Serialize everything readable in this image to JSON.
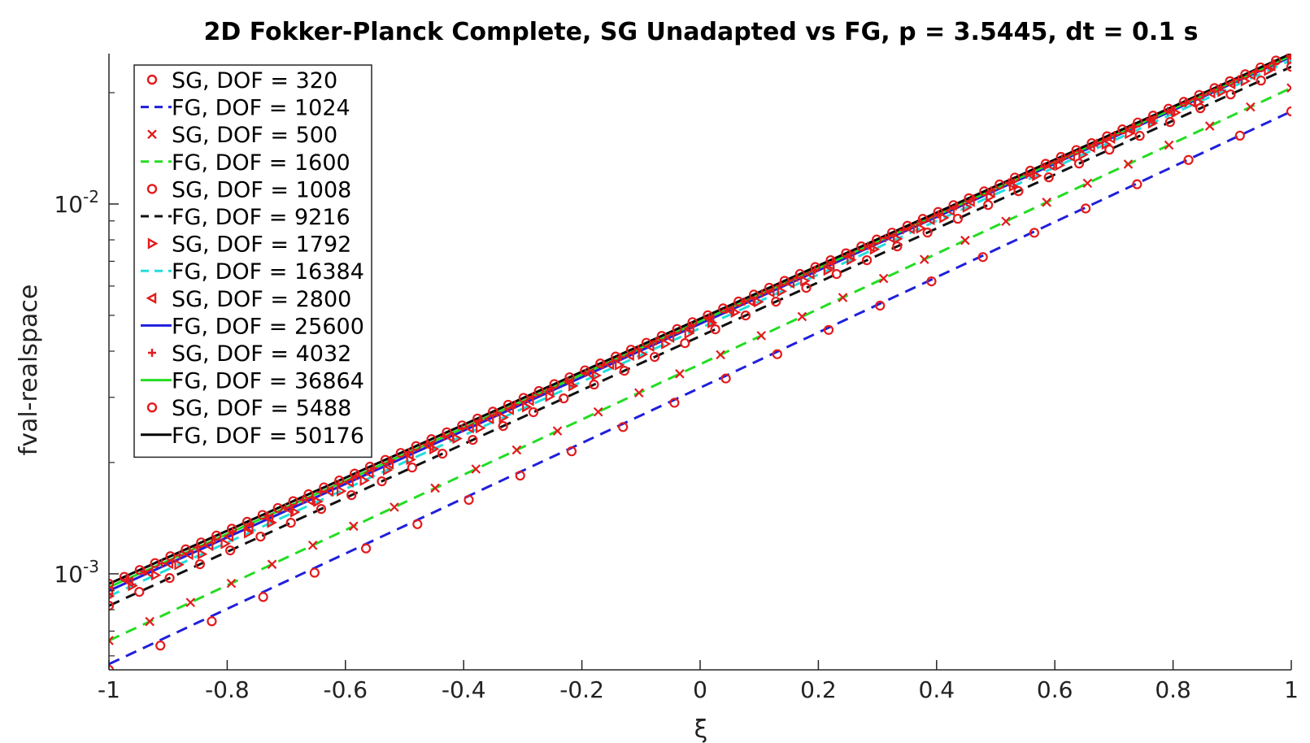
{
  "chart_data": {
    "type": "line",
    "title": "2D Fokker-Planck Complete, SG Unadapted vs FG, p = 3.5445, dt = 0.1 s",
    "xlabel": "ξ",
    "ylabel": "fval-realspace",
    "xlim": [
      -1,
      1
    ],
    "ylim": [
      0.00055,
      0.0255
    ],
    "yscale": "log",
    "xticks": [
      -1,
      -0.8,
      -0.6,
      -0.4,
      -0.2,
      0,
      0.2,
      0.4,
      0.6,
      0.8,
      1
    ],
    "xtick_labels": [
      "-1",
      "-0.8",
      "-0.6",
      "-0.4",
      "-0.2",
      "0",
      "0.2",
      "0.4",
      "0.6",
      "0.8",
      "1"
    ],
    "yticks": [
      0.001,
      0.01
    ],
    "ytick_labels": [
      {
        "base": "10",
        "exp": "-3"
      },
      {
        "base": "10",
        "exp": "-2"
      }
    ],
    "grid": false,
    "legend_position": "top-left",
    "series": [
      {
        "name": "SG, DOF = 320",
        "type": "markers",
        "marker": "circle",
        "color": "#e41a1c",
        "y_start": 0.00055,
        "y_end": 0.0178,
        "n_points": 24
      },
      {
        "name": "FG, DOF = 1024",
        "type": "line",
        "dash": "dashed",
        "color": "#1f1fdc",
        "y_start": 0.00057,
        "y_end": 0.0178
      },
      {
        "name": "SG, DOF = 500",
        "type": "markers",
        "marker": "x",
        "color": "#e41a1c",
        "y_start": 0.00066,
        "y_end": 0.0206,
        "n_points": 30
      },
      {
        "name": "FG, DOF = 1600",
        "type": "line",
        "dash": "dashed",
        "color": "#22dd22",
        "y_start": 0.00066,
        "y_end": 0.0206
      },
      {
        "name": "SG, DOF = 1008",
        "type": "markers",
        "marker": "circle",
        "color": "#e41a1c",
        "y_start": 0.00082,
        "y_end": 0.0235,
        "n_points": 40
      },
      {
        "name": "FG, DOF = 9216",
        "type": "line",
        "dash": "dashed",
        "color": "#111111",
        "y_start": 0.00082,
        "y_end": 0.0235
      },
      {
        "name": "SG, DOF = 1792",
        "type": "markers",
        "marker": "triangle-right",
        "color": "#e41a1c",
        "y_start": 0.00087,
        "y_end": 0.0245,
        "n_points": 52
      },
      {
        "name": "FG, DOF = 16384",
        "type": "line",
        "dash": "dashed",
        "color": "#22dddd",
        "y_start": 0.00087,
        "y_end": 0.0245
      },
      {
        "name": "SG, DOF = 2800",
        "type": "markers",
        "marker": "triangle-left",
        "color": "#e41a1c",
        "y_start": 0.0009,
        "y_end": 0.025,
        "n_points": 60
      },
      {
        "name": "FG, DOF = 25600",
        "type": "line",
        "dash": "solid",
        "color": "#1f1fdc",
        "y_start": 0.0009,
        "y_end": 0.025
      },
      {
        "name": "SG, DOF = 4032",
        "type": "markers",
        "marker": "plus",
        "color": "#e41a1c",
        "y_start": 0.00092,
        "y_end": 0.0252,
        "n_points": 68
      },
      {
        "name": "FG, DOF = 36864",
        "type": "line",
        "dash": "solid",
        "color": "#22dd22",
        "y_start": 0.00092,
        "y_end": 0.0252
      },
      {
        "name": "SG, DOF = 5488",
        "type": "markers",
        "marker": "circle",
        "color": "#e41a1c",
        "y_start": 0.00094,
        "y_end": 0.0255,
        "n_points": 78
      },
      {
        "name": "FG, DOF = 50176",
        "type": "line",
        "dash": "solid",
        "color": "#000000",
        "y_start": 0.00094,
        "y_end": 0.0255
      }
    ]
  }
}
